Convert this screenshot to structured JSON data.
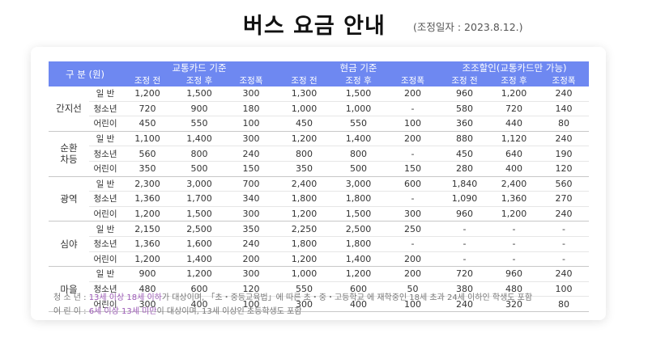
{
  "header": {
    "title": "버스 요금 안내",
    "subtitle": "(조정일자 : 2023.8.12.)"
  },
  "table": {
    "category_label": "구 분 (원)",
    "groups": [
      "교통카드 기준",
      "현금 기준",
      "조조할인(교통카드만 가능)"
    ],
    "sub_headers": [
      "조정 전",
      "조정 후",
      "조정폭"
    ],
    "regions": [
      {
        "name": "간지선",
        "rows": [
          {
            "age": "일  반",
            "v": [
              "1,200",
              "1,500",
              "300",
              "1,300",
              "1,500",
              "200",
              "960",
              "1,200",
              "240"
            ]
          },
          {
            "age": "청소년",
            "v": [
              "720",
              "900",
              "180",
              "1,000",
              "1,000",
              "-",
              "580",
              "720",
              "140"
            ]
          },
          {
            "age": "어린이",
            "v": [
              "450",
              "550",
              "100",
              "450",
              "550",
              "100",
              "360",
              "440",
              "80"
            ]
          }
        ]
      },
      {
        "name": "순환\n차등",
        "rows": [
          {
            "age": "일  반",
            "v": [
              "1,100",
              "1,400",
              "300",
              "1,200",
              "1,400",
              "200",
              "880",
              "1,120",
              "240"
            ]
          },
          {
            "age": "청소년",
            "v": [
              "560",
              "800",
              "240",
              "800",
              "800",
              "-",
              "450",
              "640",
              "190"
            ]
          },
          {
            "age": "어린이",
            "v": [
              "350",
              "500",
              "150",
              "350",
              "500",
              "150",
              "280",
              "400",
              "120"
            ]
          }
        ]
      },
      {
        "name": "광역",
        "rows": [
          {
            "age": "일  반",
            "v": [
              "2,300",
              "3,000",
              "700",
              "2,400",
              "3,000",
              "600",
              "1,840",
              "2,400",
              "560"
            ]
          },
          {
            "age": "청소년",
            "v": [
              "1,360",
              "1,700",
              "340",
              "1,800",
              "1,800",
              "-",
              "1,090",
              "1,360",
              "270"
            ]
          },
          {
            "age": "어린이",
            "v": [
              "1,200",
              "1,500",
              "300",
              "1,200",
              "1,500",
              "300",
              "960",
              "1,200",
              "240"
            ]
          }
        ]
      },
      {
        "name": "심야",
        "rows": [
          {
            "age": "일  반",
            "v": [
              "2,150",
              "2,500",
              "350",
              "2,250",
              "2,500",
              "250",
              "-",
              "-",
              "-"
            ]
          },
          {
            "age": "청소년",
            "v": [
              "1,360",
              "1,600",
              "240",
              "1,800",
              "1,800",
              "-",
              "-",
              "-",
              "-"
            ]
          },
          {
            "age": "어린이",
            "v": [
              "1,200",
              "1,400",
              "200",
              "1,200",
              "1,400",
              "200",
              "-",
              "-",
              "-"
            ]
          }
        ]
      },
      {
        "name": "마을",
        "rows": [
          {
            "age": "일  반",
            "v": [
              "900",
              "1,200",
              "300",
              "1,000",
              "1,200",
              "200",
              "720",
              "960",
              "240"
            ]
          },
          {
            "age": "청소년",
            "v": [
              "480",
              "600",
              "120",
              "550",
              "600",
              "50",
              "380",
              "480",
              "100"
            ]
          },
          {
            "age": "어린이",
            "v": [
              "300",
              "400",
              "100",
              "300",
              "400",
              "100",
              "240",
              "320",
              "80"
            ]
          }
        ]
      }
    ]
  },
  "notes": {
    "teen": {
      "prefix": "청 소 년 : ",
      "highlight": "13세 이상 18세 이하",
      "rest": "가 대상이며, 「초・중등교육법」에 따른 초・중・고등학교 에 재학중인 18세 초과 24세 이하인 학생도 포함"
    },
    "child": {
      "prefix": "어 린 이 : ",
      "highlight": "6세 이상 13세 미만",
      "rest": "이 대상이며,  13세 이상인 초등학생도 포함"
    }
  },
  "colors": {
    "header_bg": "#6e88f1",
    "after_value": "#3b5bdb",
    "note_highlight": "#9b59b6"
  }
}
